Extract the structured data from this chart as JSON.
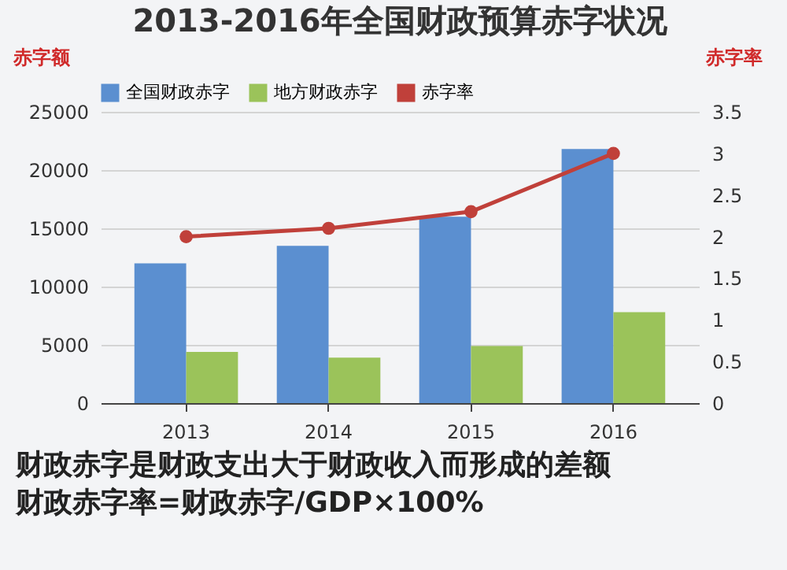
{
  "chart_data": {
    "type": "bar",
    "title": "2013-2016年全国财政预算赤字状况",
    "ylabel": "赤字额",
    "y2label": "赤字率",
    "categories": [
      "2013",
      "2014",
      "2015",
      "2016"
    ],
    "series": [
      {
        "name": "全国财政赤字",
        "color": "#5b8fd0",
        "values": [
          12000,
          13500,
          16000,
          21800
        ]
      },
      {
        "name": "地方财政赤字",
        "color": "#9bc35a",
        "values": [
          4400,
          3900,
          4900,
          7800
        ]
      },
      {
        "name": "赤字率",
        "type": "line",
        "axis": "y2",
        "color": "#c0403a",
        "marker": "circle",
        "line_style": "solid",
        "values": [
          2.0,
          2.1,
          2.3,
          3.0
        ]
      }
    ],
    "ylim": [
      0,
      25000
    ],
    "yticks": [
      0,
      5000,
      10000,
      15000,
      20000,
      25000
    ],
    "y2lim": [
      0,
      3.5
    ],
    "y2ticks": [
      0,
      0.5,
      1,
      1.5,
      2,
      2.5,
      3,
      3.5
    ],
    "grid": "y",
    "legend": "top",
    "annotations": [
      "财政赤字是财政支出大于财政收入而形成的差额",
      "财政赤字率=财政赤字/GDP×100%"
    ]
  }
}
